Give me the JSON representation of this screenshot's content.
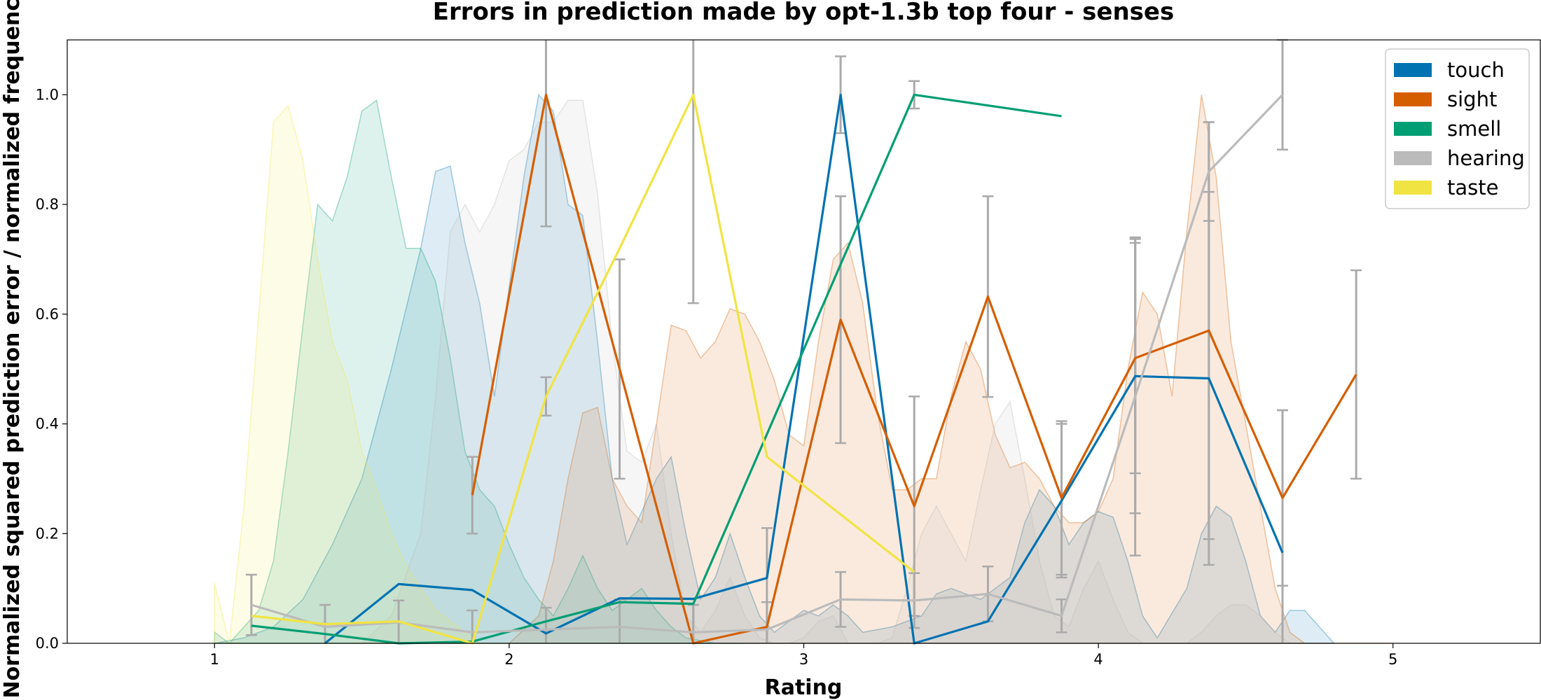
{
  "chart_data": {
    "type": "line",
    "title": "Errors in prediction made by opt-1.3b top four - senses",
    "xlabel": "Rating",
    "ylabel": "Normalized squared prediction error / normalized frequency",
    "xlim": [
      0.5,
      5.5
    ],
    "ylim": [
      0,
      1.1
    ],
    "xticks": [
      "1",
      "2",
      "3",
      "4",
      "5"
    ],
    "yticks": [
      "0.0",
      "0.2",
      "0.4",
      "0.6",
      "0.8",
      "1.0"
    ],
    "legend_position": "top-right",
    "grid": false,
    "series": [
      {
        "name": "touch",
        "color": "#0072b2",
        "error_line": {
          "x": [
            1.375,
            1.625,
            1.875,
            2.125,
            2.375,
            2.625,
            2.875,
            3.125,
            3.375,
            3.625,
            3.875,
            4.125,
            4.375,
            4.625
          ],
          "y": [
            0.0,
            0.108,
            0.097,
            0.018,
            0.082,
            0.081,
            0.119,
            1.0,
            0.0,
            0.04,
            0.26,
            0.487,
            0.483,
            0.165
          ],
          "err": [
            0,
            0,
            0,
            0,
            0,
            0,
            0,
            0.07,
            0,
            0,
            0.14,
            0.25,
            0.34,
            0.26
          ]
        },
        "density": {
          "x": [
            1.0,
            1.1,
            1.2,
            1.3,
            1.4,
            1.5,
            1.6,
            1.7,
            1.75,
            1.8,
            1.85,
            1.9,
            1.95,
            2.0,
            2.05,
            2.1,
            2.15,
            2.2,
            2.25,
            2.3,
            2.35,
            2.4,
            2.5,
            2.55,
            2.6,
            2.65,
            2.7,
            2.75,
            2.8,
            2.85,
            2.9,
            3.0,
            3.05,
            3.1,
            3.15,
            3.2,
            3.3,
            3.4,
            3.45,
            3.5,
            3.55,
            3.6,
            3.7,
            3.75,
            3.8,
            3.85,
            3.9,
            3.95,
            4.0,
            4.05,
            4.1,
            4.15,
            4.2,
            4.3,
            4.35,
            4.4,
            4.45,
            4.5,
            4.55,
            4.6,
            4.65,
            4.7,
            4.8
          ],
          "y": [
            0.0,
            0.01,
            0.03,
            0.08,
            0.18,
            0.3,
            0.5,
            0.72,
            0.86,
            0.87,
            0.73,
            0.62,
            0.45,
            0.65,
            0.85,
            1.0,
            0.97,
            0.8,
            0.78,
            0.55,
            0.3,
            0.18,
            0.3,
            0.34,
            0.2,
            0.08,
            0.12,
            0.2,
            0.12,
            0.05,
            0.02,
            0.06,
            0.05,
            0.07,
            0.05,
            0.02,
            0.03,
            0.05,
            0.09,
            0.1,
            0.09,
            0.08,
            0.12,
            0.22,
            0.28,
            0.25,
            0.18,
            0.22,
            0.24,
            0.23,
            0.15,
            0.05,
            0.01,
            0.1,
            0.2,
            0.25,
            0.23,
            0.15,
            0.05,
            0.02,
            0.06,
            0.06,
            0.0
          ]
        }
      },
      {
        "name": "sight",
        "color": "#d55e00",
        "error_line": {
          "x": [
            1.875,
            2.125,
            2.375,
            2.625,
            2.875,
            3.125,
            3.375,
            3.625,
            3.875,
            4.125,
            4.375,
            4.625,
            4.875
          ],
          "y": [
            0.27,
            1.0,
            0.5,
            0.0,
            0.03,
            0.59,
            0.25,
            0.632,
            0.265,
            0.52,
            0.57,
            0.265,
            0.49
          ],
          "err": [
            0.07,
            0.24,
            0.2,
            0.07,
            0.18,
            0.225,
            0.2,
            0.183,
            0.14,
            0.21,
            0.38,
            0.16,
            0.19
          ]
        },
        "density": {
          "x": [
            2.0,
            2.1,
            2.15,
            2.2,
            2.25,
            2.3,
            2.35,
            2.4,
            2.45,
            2.5,
            2.55,
            2.6,
            2.65,
            2.7,
            2.75,
            2.8,
            2.85,
            2.9,
            2.95,
            3.0,
            3.05,
            3.1,
            3.15,
            3.2,
            3.25,
            3.3,
            3.35,
            3.4,
            3.45,
            3.5,
            3.55,
            3.6,
            3.65,
            3.7,
            3.75,
            3.8,
            3.85,
            3.9,
            3.95,
            4.0,
            4.05,
            4.1,
            4.15,
            4.2,
            4.25,
            4.3,
            4.35,
            4.4,
            4.45,
            4.5,
            4.55,
            4.6,
            4.65,
            4.7,
            4.8,
            4.9,
            5.0
          ],
          "y": [
            0.0,
            0.05,
            0.15,
            0.3,
            0.42,
            0.43,
            0.3,
            0.25,
            0.22,
            0.4,
            0.58,
            0.57,
            0.52,
            0.55,
            0.61,
            0.6,
            0.55,
            0.48,
            0.38,
            0.36,
            0.55,
            0.7,
            0.73,
            0.62,
            0.42,
            0.28,
            0.28,
            0.3,
            0.3,
            0.45,
            0.55,
            0.5,
            0.38,
            0.32,
            0.33,
            0.3,
            0.25,
            0.22,
            0.22,
            0.24,
            0.3,
            0.5,
            0.64,
            0.6,
            0.45,
            0.75,
            1.0,
            0.85,
            0.55,
            0.4,
            0.25,
            0.1,
            0.02,
            0.0,
            0.0,
            0.0,
            0.0
          ]
        }
      },
      {
        "name": "smell",
        "color": "#009e73",
        "error_line": {
          "x": [
            1.125,
            1.375,
            1.625,
            1.875,
            2.125,
            2.375,
            2.625,
            3.375,
            3.875
          ],
          "y": [
            0.032,
            0.017,
            0.0,
            0.003,
            0.04,
            0.075,
            0.072,
            1.0,
            0.961
          ],
          "err": [
            0,
            0,
            0,
            0,
            0,
            0,
            0,
            0.025,
            0
          ]
        },
        "density": {
          "x": [
            1.0,
            1.05,
            1.1,
            1.15,
            1.2,
            1.25,
            1.3,
            1.35,
            1.4,
            1.45,
            1.5,
            1.55,
            1.6,
            1.65,
            1.7,
            1.75,
            1.8,
            1.85,
            1.9,
            1.95,
            2.0,
            2.05,
            2.1,
            2.15,
            2.2,
            2.25,
            2.3,
            2.35,
            2.4,
            2.45,
            2.5,
            2.55,
            2.6,
            2.7,
            2.8
          ],
          "y": [
            0.02,
            0.0,
            0.03,
            0.06,
            0.15,
            0.35,
            0.58,
            0.8,
            0.77,
            0.85,
            0.97,
            0.99,
            0.85,
            0.72,
            0.72,
            0.66,
            0.52,
            0.35,
            0.28,
            0.25,
            0.18,
            0.12,
            0.08,
            0.05,
            0.1,
            0.16,
            0.1,
            0.06,
            0.08,
            0.1,
            0.06,
            0.03,
            0.01,
            0.0,
            0.0
          ]
        }
      },
      {
        "name": "hearing",
        "color": "#bbbbbb",
        "error_line": {
          "x": [
            1.125,
            1.375,
            1.625,
            1.875,
            2.125,
            2.375,
            2.625,
            2.875,
            3.125,
            3.375,
            3.625,
            3.875,
            4.125,
            4.375,
            4.625
          ],
          "y": [
            0.07,
            0.03,
            0.038,
            0.02,
            0.025,
            0.03,
            0.02,
            0.025,
            0.08,
            0.078,
            0.09,
            0.05,
            0.45,
            0.86,
            1.0
          ],
          "err": [
            0.055,
            0.04,
            0.04,
            0.04,
            0.04,
            0.05,
            0.05,
            0.05,
            0.05,
            0.05,
            0.05,
            0.03,
            0.29,
            0.09,
            0.1
          ]
        },
        "density": {
          "x": [
            1.5,
            1.6,
            1.7,
            1.75,
            1.8,
            1.85,
            1.9,
            1.95,
            2.0,
            2.05,
            2.1,
            2.15,
            2.2,
            2.25,
            2.3,
            2.35,
            2.4,
            2.45,
            2.5,
            2.55,
            2.6,
            2.65,
            2.7,
            2.75,
            2.8,
            2.85,
            2.9,
            2.95,
            3.0,
            3.05,
            3.1,
            3.15,
            3.2,
            3.25,
            3.3,
            3.35,
            3.4,
            3.45,
            3.5,
            3.55,
            3.6,
            3.65,
            3.7,
            3.75,
            3.8,
            3.85,
            3.9,
            3.95,
            4.0,
            4.05,
            4.1,
            4.15,
            4.2,
            4.25,
            4.3,
            4.35,
            4.4,
            4.45,
            4.5,
            4.55,
            4.6,
            4.65,
            4.7,
            4.8
          ],
          "y": [
            0.0,
            0.05,
            0.2,
            0.45,
            0.75,
            0.8,
            0.75,
            0.8,
            0.88,
            0.9,
            0.95,
            0.95,
            0.99,
            0.99,
            0.82,
            0.55,
            0.35,
            0.33,
            0.4,
            0.2,
            0.05,
            0.02,
            0.06,
            0.12,
            0.05,
            0.01,
            0.0,
            0.0,
            0.01,
            0.04,
            0.05,
            0.0,
            0.0,
            0.0,
            0.01,
            0.1,
            0.2,
            0.25,
            0.2,
            0.15,
            0.28,
            0.4,
            0.44,
            0.3,
            0.15,
            0.05,
            0.03,
            0.1,
            0.15,
            0.08,
            0.02,
            0.0,
            0.0,
            0.0,
            0.0,
            0.02,
            0.05,
            0.07,
            0.07,
            0.05,
            0.02,
            0.0,
            0.0,
            0.0
          ]
        }
      },
      {
        "name": "taste",
        "color": "#f0e442",
        "error_line": {
          "x": [
            1.125,
            1.375,
            1.625,
            1.875,
            2.125,
            2.375,
            2.625,
            2.875,
            3.375
          ],
          "y": [
            0.05,
            0.035,
            0.04,
            0.0,
            0.45,
            0.72,
            1.0,
            0.34,
            0.13
          ],
          "err": [
            0,
            0,
            0,
            0,
            0.035,
            0,
            0.38,
            0,
            0
          ]
        },
        "density": {
          "x": [
            1.0,
            1.05,
            1.1,
            1.15,
            1.2,
            1.25,
            1.3,
            1.35,
            1.4,
            1.45,
            1.5,
            1.55,
            1.6,
            1.65,
            1.7,
            1.75,
            1.8,
            1.85,
            1.9,
            2.0
          ],
          "y": [
            0.11,
            0.0,
            0.25,
            0.6,
            0.95,
            0.98,
            0.88,
            0.7,
            0.55,
            0.48,
            0.35,
            0.28,
            0.2,
            0.14,
            0.1,
            0.06,
            0.04,
            0.02,
            0.0,
            0.0
          ]
        }
      }
    ]
  }
}
